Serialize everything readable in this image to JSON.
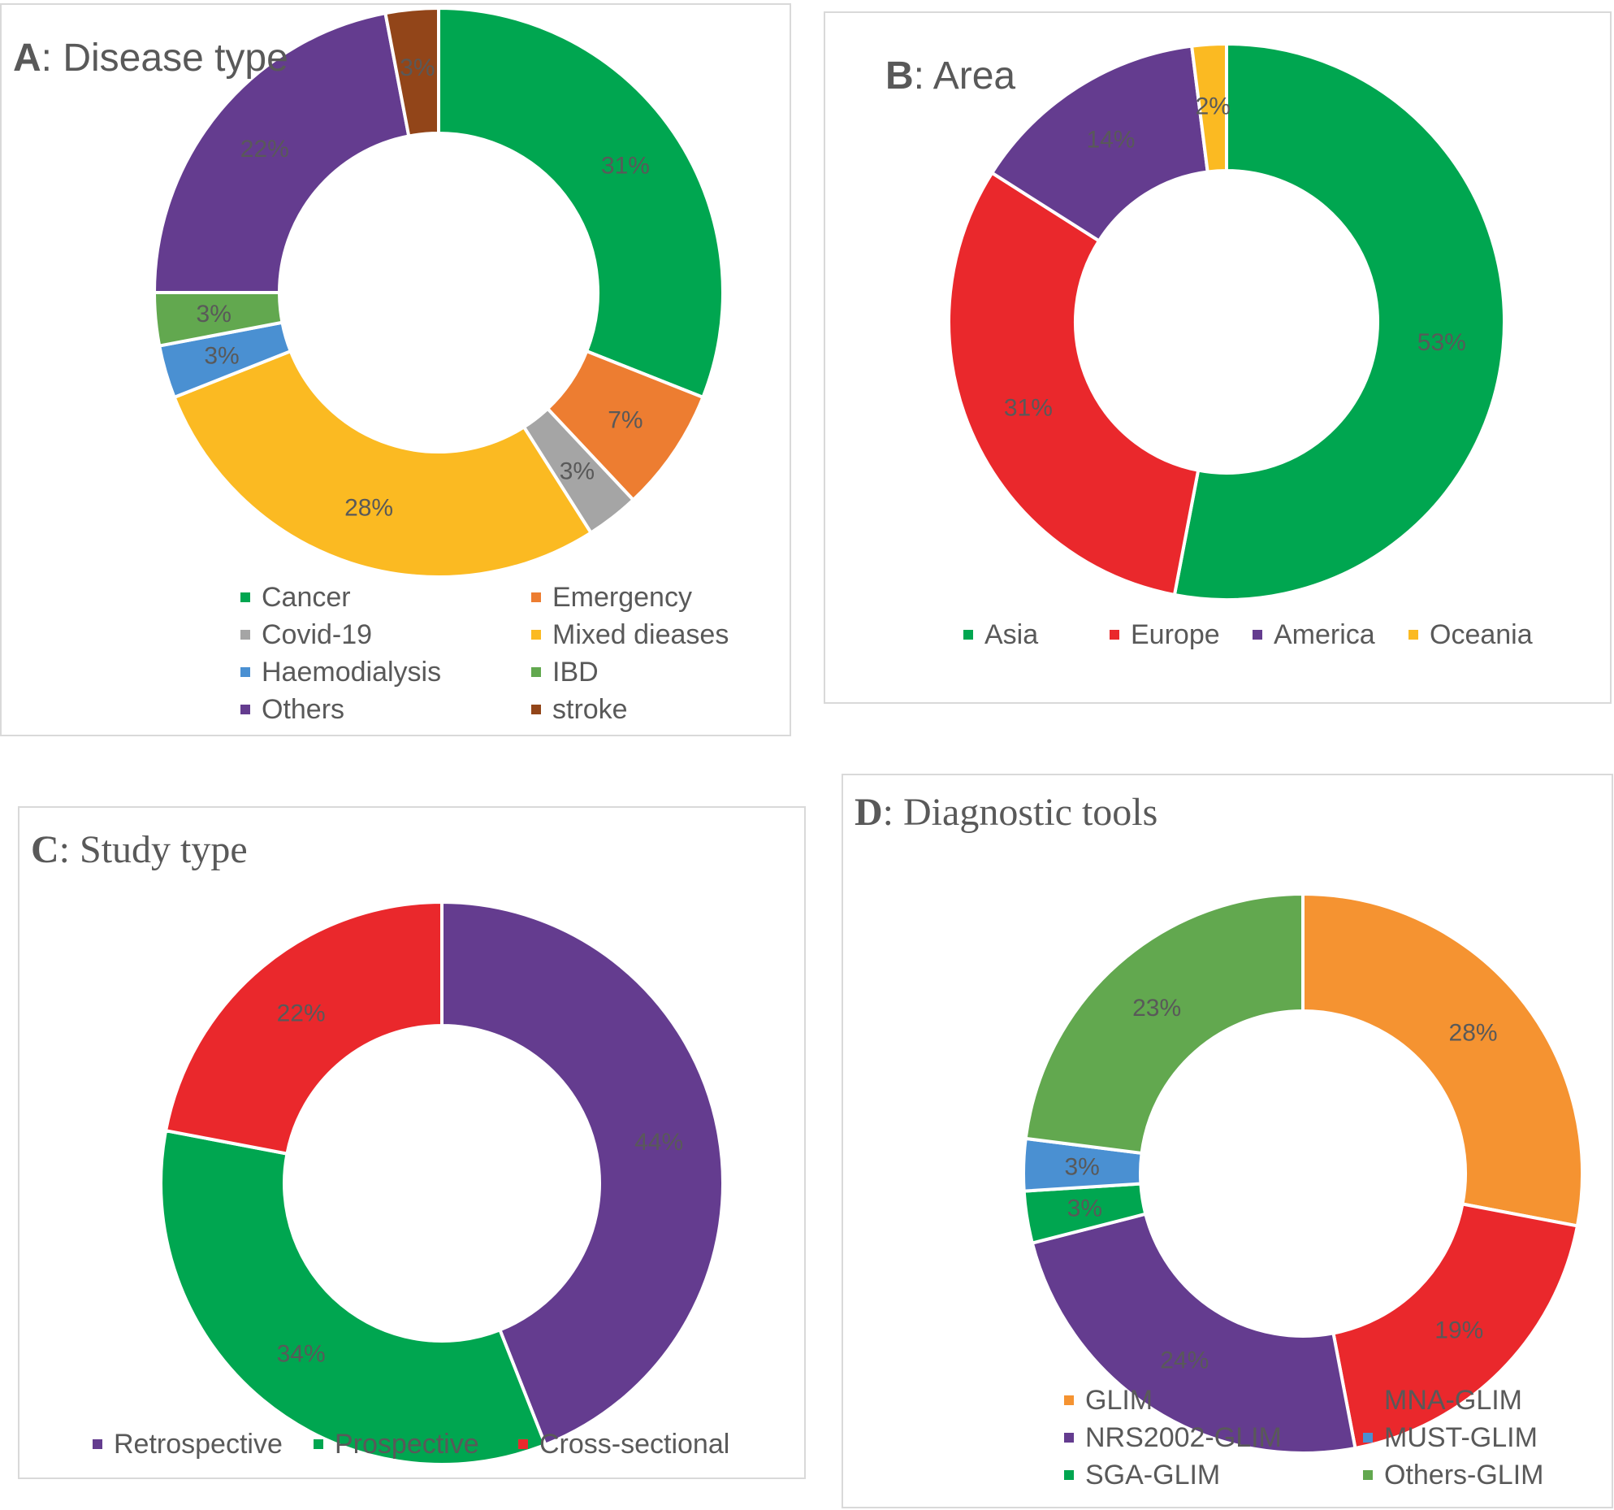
{
  "chart_data": [
    {
      "type": "pie",
      "id": "A",
      "title_letter": "A",
      "title_text": ": Disease type",
      "title": "A: Disease type",
      "slices": [
        {
          "name": "Cancer",
          "value": 31,
          "label": "31%",
          "color": "#00A650"
        },
        {
          "name": "Emergency",
          "value": 7,
          "label": "7%",
          "color": "#ED7D31"
        },
        {
          "name": "Covid-19",
          "value": 3,
          "label": "3%",
          "color": "#A5A5A5"
        },
        {
          "name": "Mixed dieases",
          "value": 28,
          "label": "28%",
          "color": "#FBBA22"
        },
        {
          "name": "Haemodialysis",
          "value": 3,
          "label": "3%",
          "color": "#4A90D2"
        },
        {
          "name": "IBD",
          "value": 3,
          "label": "3%",
          "color": "#62A84F"
        },
        {
          "name": "Others",
          "value": 22,
          "label": "22%",
          "color": "#643C8F"
        },
        {
          "name": "stroke",
          "value": 3,
          "label": "3%",
          "color": "#924519"
        }
      ],
      "legend": [
        " Cancer",
        " Emergency",
        " Covid-19",
        " Mixed dieases",
        " Haemodialysis",
        " IBD",
        " Others",
        " stroke"
      ]
    },
    {
      "type": "pie",
      "id": "B",
      "title_letter": "B",
      "title_text": ": Area",
      "title": "B: Area",
      "slices": [
        {
          "name": "Asia",
          "value": 53,
          "label": "53%",
          "color": "#00A650"
        },
        {
          "name": "Europe",
          "value": 31,
          "label": "31%",
          "color": "#EA282C"
        },
        {
          "name": "America",
          "value": 14,
          "label": "14%",
          "color": "#643C8F"
        },
        {
          "name": "Oceania",
          "value": 2,
          "label": "2%",
          "color": "#FBBA22"
        }
      ],
      "legend": [
        "Asia",
        "Europe",
        "America",
        "Oceania"
      ]
    },
    {
      "type": "pie",
      "id": "C",
      "title_letter": "C",
      "title_text": ": Study type",
      "title": "C: Study type",
      "slices": [
        {
          "name": "Retrospective",
          "value": 44,
          "label": "44%",
          "color": "#643C8F"
        },
        {
          "name": "Prospective",
          "value": 34,
          "label": "34%",
          "color": "#00A650"
        },
        {
          "name": "Cross-sectional",
          "value": 22,
          "label": "22%",
          "color": "#EA282C"
        }
      ],
      "legend": [
        "Retrospective",
        "Prospective",
        "Cross-sectional"
      ]
    },
    {
      "type": "pie",
      "id": "D",
      "title_letter": "D",
      "title_text": ": Diagnostic tools",
      "title": "D: Diagnostic tools",
      "slices": [
        {
          "name": "GLIM",
          "value": 28,
          "label": "28%",
          "color": "#F59331"
        },
        {
          "name": "MNA-GLIM",
          "value": 19,
          "label": "19%",
          "color": "#EA282C"
        },
        {
          "name": "NRS2002-GLIM",
          "value": 24,
          "label": "24%",
          "color": "#643C8F"
        },
        {
          "name": "SGA-GLIM",
          "value": 3,
          "label": "3%",
          "color": "#00A650"
        },
        {
          "name": "MUST-GLIM",
          "value": 3,
          "label": "3%",
          "color": "#4A90D2"
        },
        {
          "name": "Others-GLIM",
          "value": 23,
          "label": "23%",
          "color": "#62A84F"
        }
      ],
      "legend": [
        "GLIM",
        "MNA-GLIM",
        "NRS2002-GLIM",
        "MUST-GLIM",
        "SGA-GLIM",
        "Others-GLIM"
      ]
    }
  ]
}
